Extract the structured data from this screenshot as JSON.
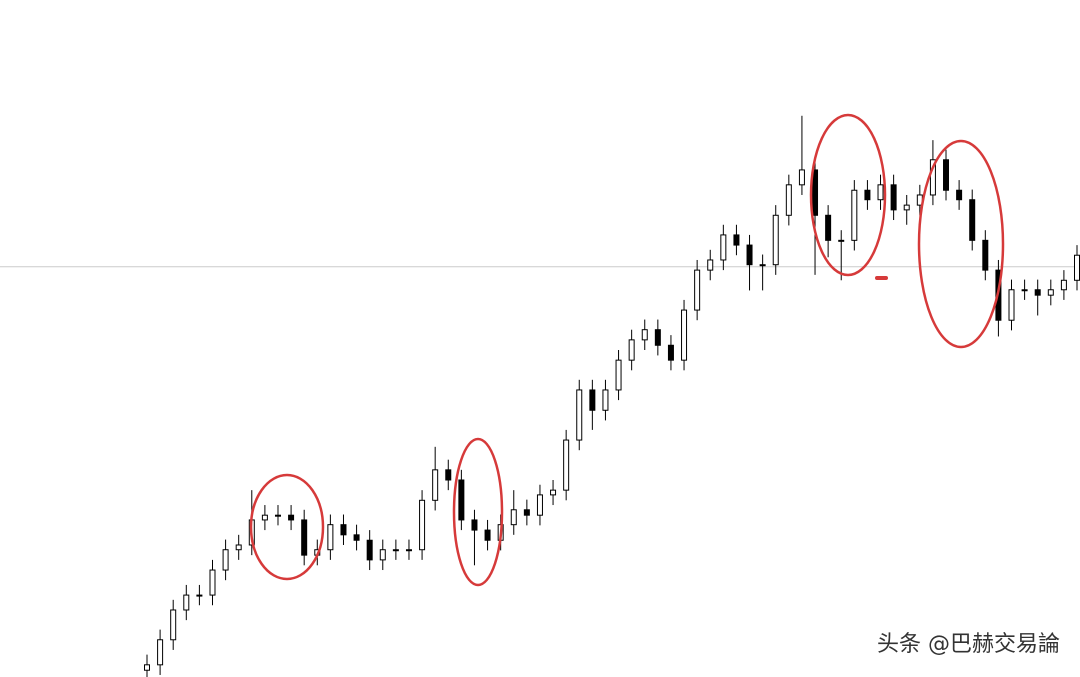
{
  "chart_data": {
    "type": "candlestick",
    "ylim": [
      0,
      100
    ],
    "hline": 60.6,
    "hline_color": "#cccccc",
    "up_color": "#ffffff",
    "down_color": "#000000",
    "open": [
      1.0,
      1.8,
      5.5,
      9.9,
      12.1,
      12.1,
      15.8,
      18.8,
      19.5,
      23.2,
      23.9,
      23.9,
      23.2,
      18.0,
      18.8,
      22.5,
      21.0,
      20.2,
      17.3,
      18.8,
      18.8,
      18.8,
      26.1,
      30.6,
      29.1,
      23.2,
      21.7,
      20.2,
      22.5,
      24.7,
      23.9,
      26.9,
      27.6,
      35.0,
      42.4,
      39.4,
      42.4,
      46.8,
      49.8,
      51.3,
      49.0,
      46.8,
      54.2,
      60.1,
      61.6,
      65.3,
      63.8,
      60.9,
      60.9,
      68.2,
      72.7,
      74.9,
      68.2,
      64.5,
      64.5,
      71.9,
      70.5,
      72.7,
      69.0,
      69.7,
      71.2,
      76.4,
      71.9,
      70.5,
      64.5,
      60.1,
      52.7,
      57.2,
      57.2,
      56.4,
      57.2,
      58.6
    ],
    "high": [
      3.3,
      7.0,
      11.4,
      13.6,
      13.6,
      17.3,
      20.3,
      21.0,
      27.6,
      25.4,
      25.4,
      25.4,
      24.7,
      20.3,
      24.0,
      24.0,
      22.5,
      21.7,
      20.3,
      20.3,
      20.3,
      27.6,
      34.0,
      32.1,
      30.6,
      24.7,
      23.2,
      24.0,
      27.6,
      26.2,
      28.4,
      29.1,
      36.5,
      43.9,
      43.9,
      43.9,
      48.3,
      51.3,
      52.8,
      52.8,
      50.5,
      55.7,
      61.6,
      63.1,
      66.8,
      66.8,
      65.3,
      62.4,
      69.7,
      74.2,
      82.9,
      76.4,
      69.7,
      66.0,
      73.4,
      73.4,
      74.2,
      74.2,
      71.2,
      72.7,
      79.3,
      77.9,
      73.4,
      72.0,
      66.0,
      61.6,
      58.7,
      58.7,
      58.7,
      58.7,
      60.1,
      63.8
    ],
    "low": [
      0.0,
      0.3,
      4.0,
      8.4,
      10.6,
      10.6,
      14.3,
      17.3,
      18.0,
      21.7,
      22.4,
      21.7,
      16.5,
      16.5,
      17.3,
      19.5,
      18.7,
      15.8,
      15.8,
      17.3,
      17.3,
      17.3,
      24.6,
      27.6,
      21.7,
      16.5,
      18.7,
      18.7,
      21.0,
      22.4,
      22.4,
      25.4,
      26.1,
      33.5,
      36.5,
      37.9,
      40.9,
      45.3,
      48.3,
      47.5,
      45.3,
      45.3,
      52.7,
      58.6,
      60.1,
      62.3,
      57.1,
      57.1,
      59.4,
      66.7,
      71.2,
      59.4,
      62.0,
      58.6,
      63.0,
      69.0,
      69.0,
      67.5,
      66.8,
      68.2,
      69.7,
      70.4,
      69.0,
      63.0,
      58.6,
      50.3,
      51.2,
      55.7,
      53.4,
      54.9,
      55.7,
      57.1
    ],
    "close": [
      1.8,
      5.5,
      9.9,
      12.1,
      12.1,
      15.8,
      18.8,
      19.5,
      23.2,
      23.9,
      23.9,
      23.2,
      18.0,
      18.8,
      22.5,
      21.0,
      20.2,
      17.3,
      18.8,
      18.8,
      18.8,
      26.1,
      30.6,
      29.1,
      23.2,
      21.7,
      20.2,
      22.5,
      24.7,
      23.9,
      26.9,
      27.6,
      35.0,
      42.4,
      39.4,
      42.4,
      46.8,
      49.8,
      51.3,
      49.0,
      46.8,
      54.2,
      60.1,
      61.6,
      65.3,
      63.8,
      60.9,
      60.9,
      68.2,
      72.7,
      74.9,
      68.2,
      64.5,
      64.5,
      71.9,
      70.5,
      72.7,
      69.0,
      69.7,
      71.2,
      76.4,
      71.9,
      70.5,
      64.5,
      60.1,
      52.7,
      57.2,
      57.2,
      56.4,
      57.2,
      58.6,
      62.3
    ],
    "watermark": "头条 @巴赫交易論"
  }
}
